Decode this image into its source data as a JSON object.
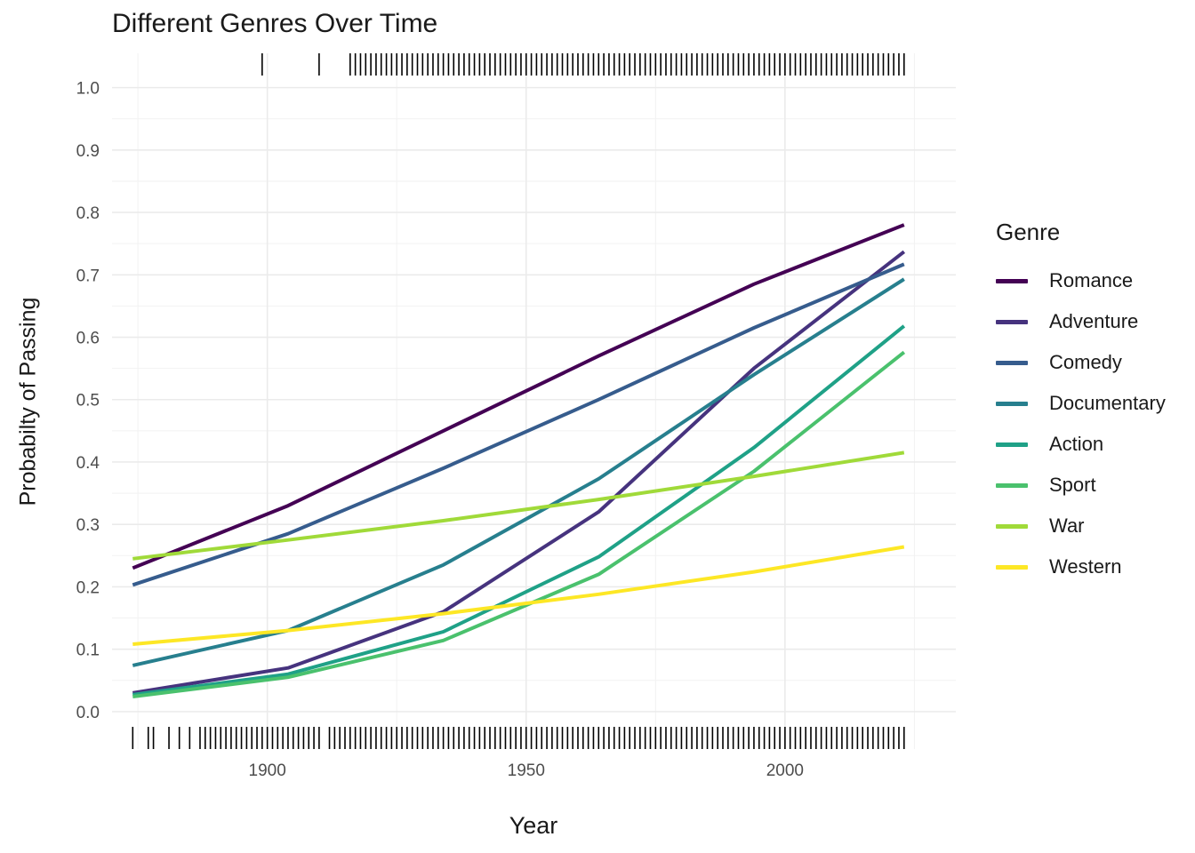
{
  "chart_data": {
    "type": "line",
    "title": "Different Genres Over Time",
    "xlabel": "Year",
    "ylabel": "Probabilty of Passing",
    "xlim": [
      1870,
      2033
    ],
    "ylim": [
      -0.06,
      1.055
    ],
    "x_ticks": [
      1900,
      1950,
      2000
    ],
    "x_tick_labels": [
      "1900",
      "1950",
      "2000"
    ],
    "y_ticks": [
      0.0,
      0.1,
      0.2,
      0.3,
      0.4,
      0.5,
      0.6,
      0.7,
      0.8,
      0.9,
      1.0
    ],
    "y_tick_labels": [
      "0.0",
      "0.1",
      "0.2",
      "0.3",
      "0.4",
      "0.5",
      "0.6",
      "0.7",
      "0.8",
      "0.9",
      "1.0"
    ],
    "grid": true,
    "legend_title": "Genre",
    "legend_position": "right",
    "series": [
      {
        "name": "Romance",
        "color": "#440154",
        "x": [
          1874,
          1904,
          1934,
          1964,
          1994,
          2023
        ],
        "y": [
          0.23,
          0.33,
          0.45,
          0.57,
          0.685,
          0.78
        ]
      },
      {
        "name": "Adventure",
        "color": "#46337E",
        "x": [
          1874,
          1904,
          1934,
          1964,
          1994,
          2023
        ],
        "y": [
          0.03,
          0.07,
          0.16,
          0.32,
          0.55,
          0.737
        ]
      },
      {
        "name": "Comedy",
        "color": "#365C8D",
        "x": [
          1874,
          1904,
          1934,
          1964,
          1994,
          2023
        ],
        "y": [
          0.203,
          0.285,
          0.39,
          0.5,
          0.615,
          0.717
        ]
      },
      {
        "name": "Documentary",
        "color": "#277F8E",
        "x": [
          1874,
          1904,
          1934,
          1964,
          1994,
          2023
        ],
        "y": [
          0.074,
          0.13,
          0.235,
          0.373,
          0.54,
          0.693
        ]
      },
      {
        "name": "Action",
        "color": "#1FA187",
        "x": [
          1874,
          1904,
          1934,
          1964,
          1994,
          2023
        ],
        "y": [
          0.027,
          0.06,
          0.128,
          0.248,
          0.423,
          0.618
        ]
      },
      {
        "name": "Sport",
        "color": "#4AC16D",
        "x": [
          1874,
          1904,
          1934,
          1964,
          1994,
          2023
        ],
        "y": [
          0.024,
          0.055,
          0.114,
          0.22,
          0.385,
          0.576
        ]
      },
      {
        "name": "War",
        "color": "#A0DA39",
        "x": [
          1874,
          1904,
          1934,
          1964,
          1994,
          2023
        ],
        "y": [
          0.245,
          0.275,
          0.306,
          0.34,
          0.377,
          0.415
        ]
      },
      {
        "name": "Western",
        "color": "#FDE725",
        "x": [
          1874,
          1904,
          1934,
          1964,
          1994,
          2023
        ],
        "y": [
          0.108,
          0.13,
          0.157,
          0.188,
          0.224,
          0.264
        ]
      }
    ],
    "rug_top": [
      1899,
      1910,
      1916,
      1917,
      1918,
      1919,
      1920,
      1921,
      1922,
      1923,
      1924,
      1925,
      1926,
      1927,
      1928,
      1929,
      1930,
      1931,
      1932,
      1933,
      1934,
      1935,
      1936,
      1937,
      1938,
      1939,
      1940,
      1941,
      1942,
      1943,
      1944,
      1945,
      1946,
      1947,
      1948,
      1949,
      1950,
      1951,
      1952,
      1953,
      1954,
      1955,
      1956,
      1957,
      1958,
      1959,
      1960,
      1961,
      1962,
      1963,
      1964,
      1965,
      1966,
      1967,
      1968,
      1969,
      1970,
      1971,
      1972,
      1973,
      1974,
      1975,
      1976,
      1977,
      1978,
      1979,
      1980,
      1981,
      1982,
      1983,
      1984,
      1985,
      1986,
      1987,
      1988,
      1989,
      1990,
      1991,
      1992,
      1993,
      1994,
      1995,
      1996,
      1997,
      1998,
      1999,
      2000,
      2001,
      2002,
      2003,
      2004,
      2005,
      2006,
      2007,
      2008,
      2009,
      2010,
      2011,
      2012,
      2013,
      2014,
      2015,
      2016,
      2017,
      2018,
      2019,
      2020,
      2021,
      2022,
      2023
    ],
    "rug_bottom": [
      1874,
      1877,
      1878,
      1881,
      1883,
      1885,
      1887,
      1888,
      1889,
      1890,
      1891,
      1892,
      1893,
      1894,
      1895,
      1896,
      1897,
      1898,
      1899,
      1900,
      1901,
      1902,
      1903,
      1904,
      1905,
      1906,
      1907,
      1908,
      1909,
      1910,
      1912,
      1913,
      1914,
      1915,
      1916,
      1917,
      1918,
      1919,
      1920,
      1921,
      1922,
      1923,
      1924,
      1925,
      1926,
      1927,
      1928,
      1929,
      1930,
      1931,
      1932,
      1933,
      1934,
      1935,
      1936,
      1937,
      1938,
      1939,
      1940,
      1941,
      1942,
      1943,
      1944,
      1945,
      1946,
      1947,
      1948,
      1949,
      1950,
      1951,
      1952,
      1953,
      1954,
      1955,
      1956,
      1957,
      1958,
      1959,
      1960,
      1961,
      1962,
      1963,
      1964,
      1965,
      1966,
      1967,
      1968,
      1969,
      1970,
      1971,
      1972,
      1973,
      1974,
      1975,
      1976,
      1977,
      1978,
      1979,
      1980,
      1981,
      1982,
      1983,
      1984,
      1985,
      1986,
      1987,
      1988,
      1989,
      1990,
      1991,
      1992,
      1993,
      1994,
      1995,
      1996,
      1997,
      1998,
      1999,
      2000,
      2001,
      2002,
      2003,
      2004,
      2005,
      2006,
      2007,
      2008,
      2009,
      2010,
      2011,
      2012,
      2013,
      2014,
      2015,
      2016,
      2017,
      2018,
      2019,
      2020,
      2021,
      2022,
      2023
    ]
  }
}
